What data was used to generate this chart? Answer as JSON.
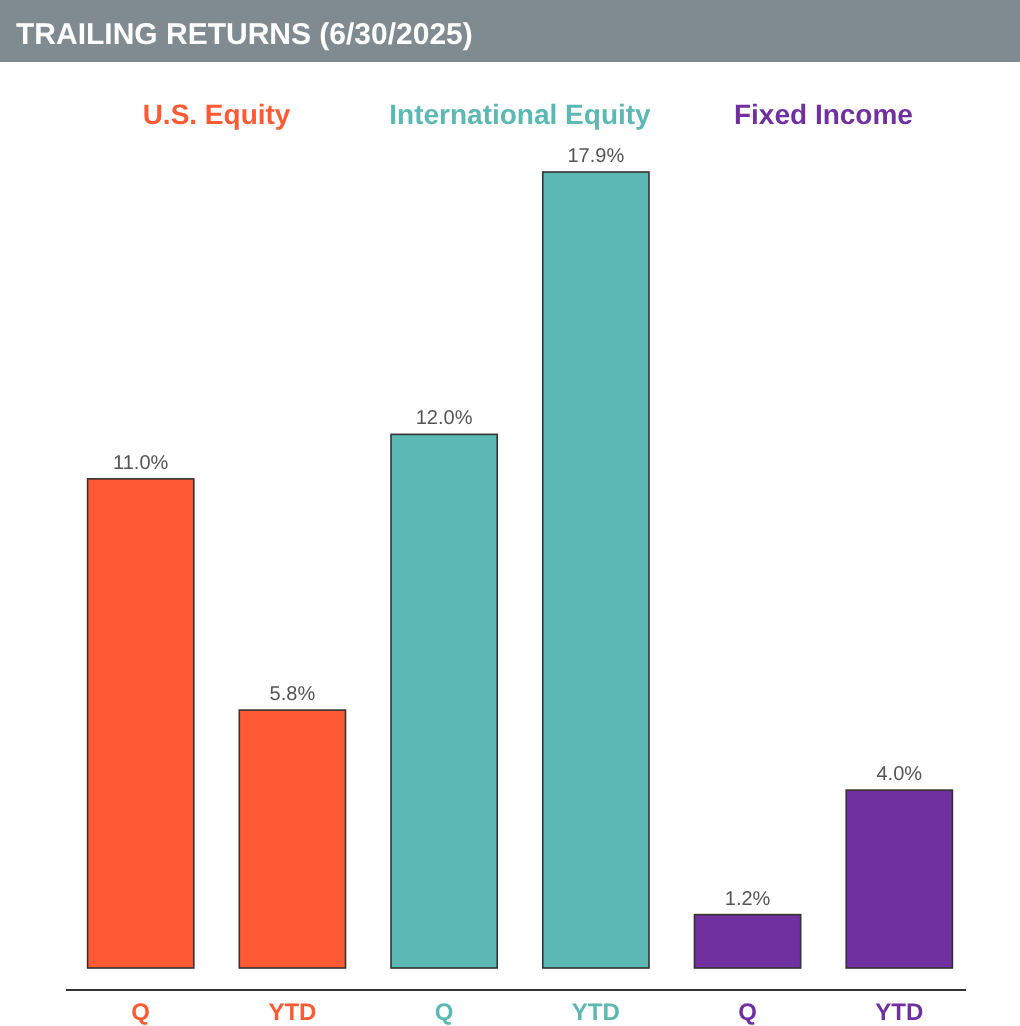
{
  "chart_data": {
    "type": "bar",
    "title": "TRAILING RETURNS (6/30/2025)",
    "categories": [
      "Q",
      "YTD",
      "Q",
      "YTD",
      "Q",
      "YTD"
    ],
    "series": [
      {
        "name": "U.S. Equity",
        "color": "#ff5a33",
        "values": [
          11.0,
          5.8,
          null,
          null,
          null,
          null
        ],
        "value_labels": [
          "11.0%",
          "5.8%",
          null,
          null,
          null,
          null
        ]
      },
      {
        "name": "International Equity",
        "color": "#5bb8b2",
        "values": [
          null,
          null,
          12.0,
          17.9,
          null,
          null
        ],
        "value_labels": [
          null,
          null,
          "12.0%",
          "17.9%",
          null,
          null
        ]
      },
      {
        "name": "Fixed Income",
        "color": "#7030a0",
        "values": [
          null,
          null,
          null,
          null,
          1.2,
          4.0
        ],
        "value_labels": [
          null,
          null,
          null,
          null,
          "1.2%",
          "4.0%"
        ]
      }
    ]
  }
}
